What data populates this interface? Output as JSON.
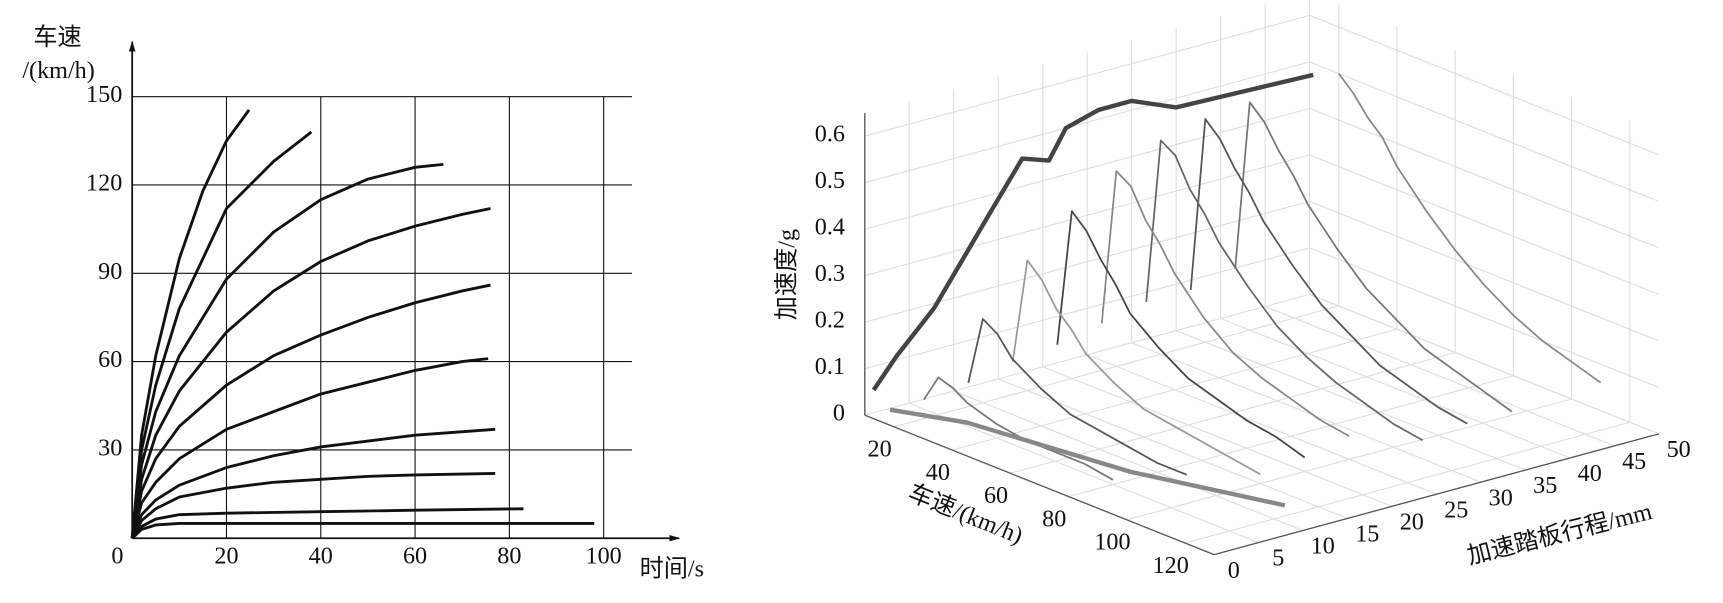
{
  "chart_data": [
    {
      "type": "line",
      "ylabel": "车速",
      "ylabel_unit": "/(km/h)",
      "xlabel": "时间/s",
      "xlim": [
        0,
        106
      ],
      "ylim": [
        0,
        150
      ],
      "xticks": [
        0,
        20,
        40,
        60,
        80,
        100
      ],
      "yticks": [
        30,
        60,
        90,
        120,
        150
      ],
      "grid": true,
      "series": [
        {
          "color": "#111111",
          "x": [
            0,
            2,
            5,
            10,
            15,
            20,
            24.8
          ],
          "values": [
            0,
            35,
            62,
            95,
            118,
            135,
            145.5
          ]
        },
        {
          "color": "#111111",
          "x": [
            0,
            2,
            5,
            10,
            20,
            30,
            38
          ],
          "values": [
            0,
            30,
            52,
            78,
            112,
            128,
            138
          ]
        },
        {
          "color": "#111111",
          "x": [
            0,
            2,
            5,
            10,
            20,
            30,
            40,
            50,
            60,
            66
          ],
          "values": [
            0,
            25,
            43,
            62,
            88,
            104,
            115,
            122,
            126,
            127
          ]
        },
        {
          "color": "#111111",
          "x": [
            0,
            2,
            5,
            10,
            20,
            30,
            40,
            50,
            60,
            70,
            76
          ],
          "values": [
            0,
            20,
            35,
            50,
            70,
            84,
            94,
            101,
            106,
            110,
            112
          ]
        },
        {
          "color": "#111111",
          "x": [
            0,
            2,
            5,
            10,
            20,
            30,
            40,
            50,
            60,
            70,
            76
          ],
          "values": [
            0,
            16,
            27,
            38,
            52,
            62,
            69,
            75,
            80,
            84,
            86
          ]
        },
        {
          "color": "#111111",
          "x": [
            0,
            2,
            5,
            10,
            20,
            30,
            40,
            50,
            60,
            70,
            75.5
          ],
          "values": [
            0,
            12,
            19,
            27,
            37,
            43,
            49,
            53,
            57,
            60,
            61
          ]
        },
        {
          "color": "#111111",
          "x": [
            0,
            2,
            5,
            10,
            20,
            30,
            40,
            50,
            60,
            77
          ],
          "values": [
            0,
            8,
            13,
            18,
            24,
            28,
            31,
            33,
            35,
            37
          ]
        },
        {
          "color": "#111111",
          "x": [
            0,
            2,
            5,
            10,
            20,
            30,
            40,
            50,
            60,
            77
          ],
          "values": [
            0,
            6,
            10,
            14,
            17,
            19,
            20,
            21,
            21.5,
            22
          ]
        },
        {
          "color": "#111111",
          "x": [
            0,
            2,
            5,
            10,
            20,
            40,
            60,
            83
          ],
          "values": [
            0,
            4,
            6.5,
            8,
            8.5,
            9,
            9.5,
            10
          ]
        },
        {
          "color": "#111111",
          "x": [
            0,
            2,
            5,
            10,
            20,
            40,
            60,
            98
          ],
          "values": [
            0,
            3,
            4.5,
            5,
            5,
            5,
            5,
            5
          ]
        }
      ]
    },
    {
      "type": "waterfall3d",
      "zlabel": "加速度/g",
      "speed_label": "车速/(km/h)",
      "pedal_label": "加速踏板行程/mm",
      "speed_lim": [
        10,
        130
      ],
      "pedal_lim": [
        0,
        50
      ],
      "zlim": [
        0,
        0.65
      ],
      "speed_ticks": [
        20,
        40,
        60,
        80,
        100,
        120
      ],
      "pedal_ticks": [
        0,
        5,
        10,
        15,
        20,
        25,
        30,
        35,
        40,
        45,
        50
      ],
      "zticks": [
        0,
        0.1,
        0.2,
        0.3,
        0.4,
        0.5,
        0.6
      ],
      "grid": true,
      "speeds": [
        15,
        20,
        25,
        30,
        35,
        40,
        50,
        60,
        70,
        80,
        90,
        100,
        110
      ],
      "series": [
        {
          "pedal": 5,
          "color": "#777777",
          "values": [
            0.02,
            0.08,
            0.07,
            0.05,
            0.04,
            0.03,
            0.02,
            0.02,
            0.02,
            0.01,
            null,
            null,
            null
          ]
        },
        {
          "pedal": 10,
          "color": "#555555",
          "values": [
            0.03,
            0.18,
            0.16,
            0.12,
            0.1,
            0.08,
            0.05,
            0.04,
            0.03,
            0.02,
            0.02,
            null,
            null
          ]
        },
        {
          "pedal": 15,
          "color": "#999999",
          "values": [
            0.05,
            0.28,
            0.25,
            0.2,
            0.17,
            0.13,
            0.09,
            0.06,
            0.05,
            0.04,
            0.03,
            0.02,
            null
          ]
        },
        {
          "pedal": 20,
          "color": "#444444",
          "values": [
            0.06,
            0.36,
            0.33,
            0.28,
            0.24,
            0.19,
            0.14,
            0.1,
            0.08,
            0.06,
            0.05,
            0.03,
            null
          ]
        },
        {
          "pedal": 25,
          "color": "#888888",
          "values": [
            0.08,
            0.42,
            0.4,
            0.34,
            0.3,
            0.25,
            0.18,
            0.13,
            0.1,
            0.08,
            0.06,
            0.05,
            null
          ]
        },
        {
          "pedal": 30,
          "color": "#666666",
          "values": [
            0.1,
            0.46,
            0.44,
            0.38,
            0.34,
            0.29,
            0.22,
            0.16,
            0.12,
            0.09,
            0.07,
            0.05,
            0.04
          ]
        },
        {
          "pedal": 35,
          "color": "#555555",
          "values": [
            0.1,
            0.48,
            0.45,
            0.4,
            0.36,
            0.31,
            0.24,
            0.18,
            0.14,
            0.1,
            0.08,
            0.06,
            0.05
          ]
        },
        {
          "pedal": 40,
          "color": "#777777",
          "values": [
            0.12,
            0.49,
            0.46,
            0.41,
            0.37,
            0.32,
            0.25,
            0.19,
            0.15,
            0.11,
            0.09,
            0.07,
            0.05
          ]
        },
        {
          "pedal": 50,
          "color": "#888888",
          "values": [
            null,
            0.5,
            0.47,
            0.43,
            0.4,
            0.35,
            0.28,
            0.22,
            0.17,
            0.13,
            0.1,
            0.08,
            0.06
          ]
        }
      ],
      "envelope": {
        "color": "#444444",
        "pedal": [
          1,
          3.5,
          7.8,
          14,
          17.7,
          20.7,
          22.6,
          26.3,
          30,
          35,
          50.4
        ],
        "values": [
          0.049,
          0.107,
          0.19,
          0.36,
          0.46,
          0.44,
          0.5,
          0.52,
          0.52,
          0.48,
          0.47
        ]
      },
      "floor_line": {
        "color": "#888888",
        "speed": [
          10.7,
          28,
          76,
          114.6
        ],
        "pedal": [
          2.6,
          5.6,
          8.3,
          13
        ]
      }
    }
  ]
}
